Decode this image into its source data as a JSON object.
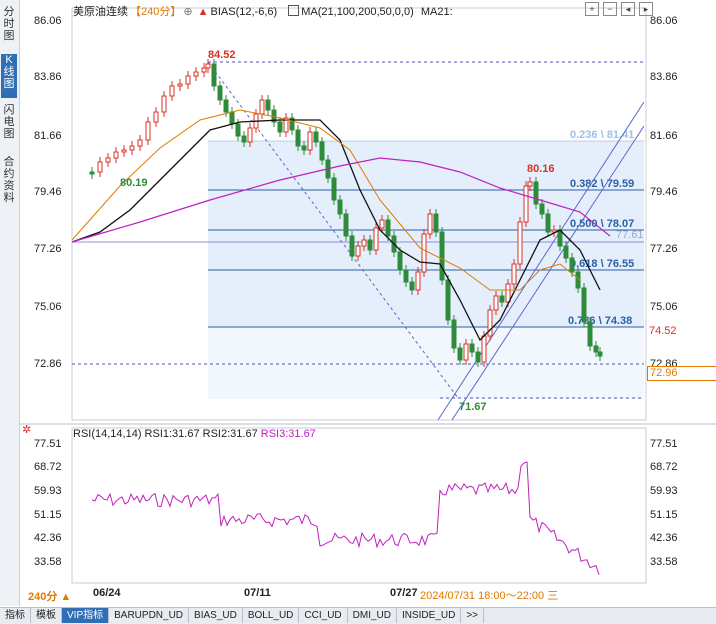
{
  "sidebar": {
    "items": [
      {
        "label": "分时图",
        "active": false
      },
      {
        "label": "K线图",
        "active": true
      },
      {
        "label": "闪电图",
        "active": false
      },
      {
        "label": "合约资料",
        "active": false
      }
    ]
  },
  "header": {
    "symbol": "美原油连续",
    "period": "【240分】",
    "indicator1": "BIAS(12,-6,6)",
    "indicator2": "MA(21,100,200,50,0,0)",
    "indicator3": "MA21:"
  },
  "price_axis": {
    "left": [
      "86.06",
      "83.86",
      "81.66",
      "79.46",
      "77.26",
      "75.06",
      "72.86"
    ],
    "right": [
      "86.06",
      "83.86",
      "81.66",
      "79.46",
      "77.26",
      "75.06",
      "72.86"
    ]
  },
  "annotations": {
    "high": "84.52",
    "low1": "80.19",
    "mid_high": "80.16",
    "low2": "71.67",
    "right_level": "77.61",
    "red_price": "74.52",
    "current_price": "72.96"
  },
  "fib": [
    {
      "label": "0.236 \\ 81.41"
    },
    {
      "label": "0.382 \\ 79.59"
    },
    {
      "label": "0.500 \\ 78.07"
    },
    {
      "label": "0.618 \\ 76.55"
    },
    {
      "label": "0.786 \\ 74.38"
    }
  ],
  "rsi": {
    "title": "RSI(14,14,14)",
    "rsi1": "RSI1:31.67",
    "rsi2": "RSI2:31.67",
    "rsi3": "RSI3:31.67",
    "ticks": [
      "77.51",
      "68.72",
      "59.93",
      "51.15",
      "42.36",
      "33.58"
    ]
  },
  "x_axis": {
    "labels": [
      "06/24",
      "07/11",
      "07/27",
      "2024/07/31 18:00～22:00 三"
    ]
  },
  "period_button": "240分 ▲",
  "bottom_tabs": [
    {
      "label": "指标",
      "active": false
    },
    {
      "label": "模板",
      "active": false
    },
    {
      "label": "VIP指标",
      "active": true
    },
    {
      "label": "BARUPDN_UD",
      "active": false
    },
    {
      "label": "BIAS_UD",
      "active": false
    },
    {
      "label": "BOLL_UD",
      "active": false
    },
    {
      "label": "CCI_UD",
      "active": false
    },
    {
      "label": "DMI_UD",
      "active": false
    },
    {
      "label": "INSIDE_UD",
      "active": false
    },
    {
      "label": ">>",
      "active": false
    }
  ],
  "colors": {
    "up": "#d93025",
    "down": "#2e8b3a",
    "ma21": "#111111",
    "ma100": "#e07a00",
    "ma200": "#c020c0",
    "rsi": "#c020c0",
    "fib_line": "#2b5fa6",
    "fib_fill": "#cfe2f7"
  },
  "icons": {
    "header_icon": "refresh-icon",
    "tools": [
      "plus-icon",
      "minus-icon",
      "left-icon",
      "right-icon"
    ]
  }
}
